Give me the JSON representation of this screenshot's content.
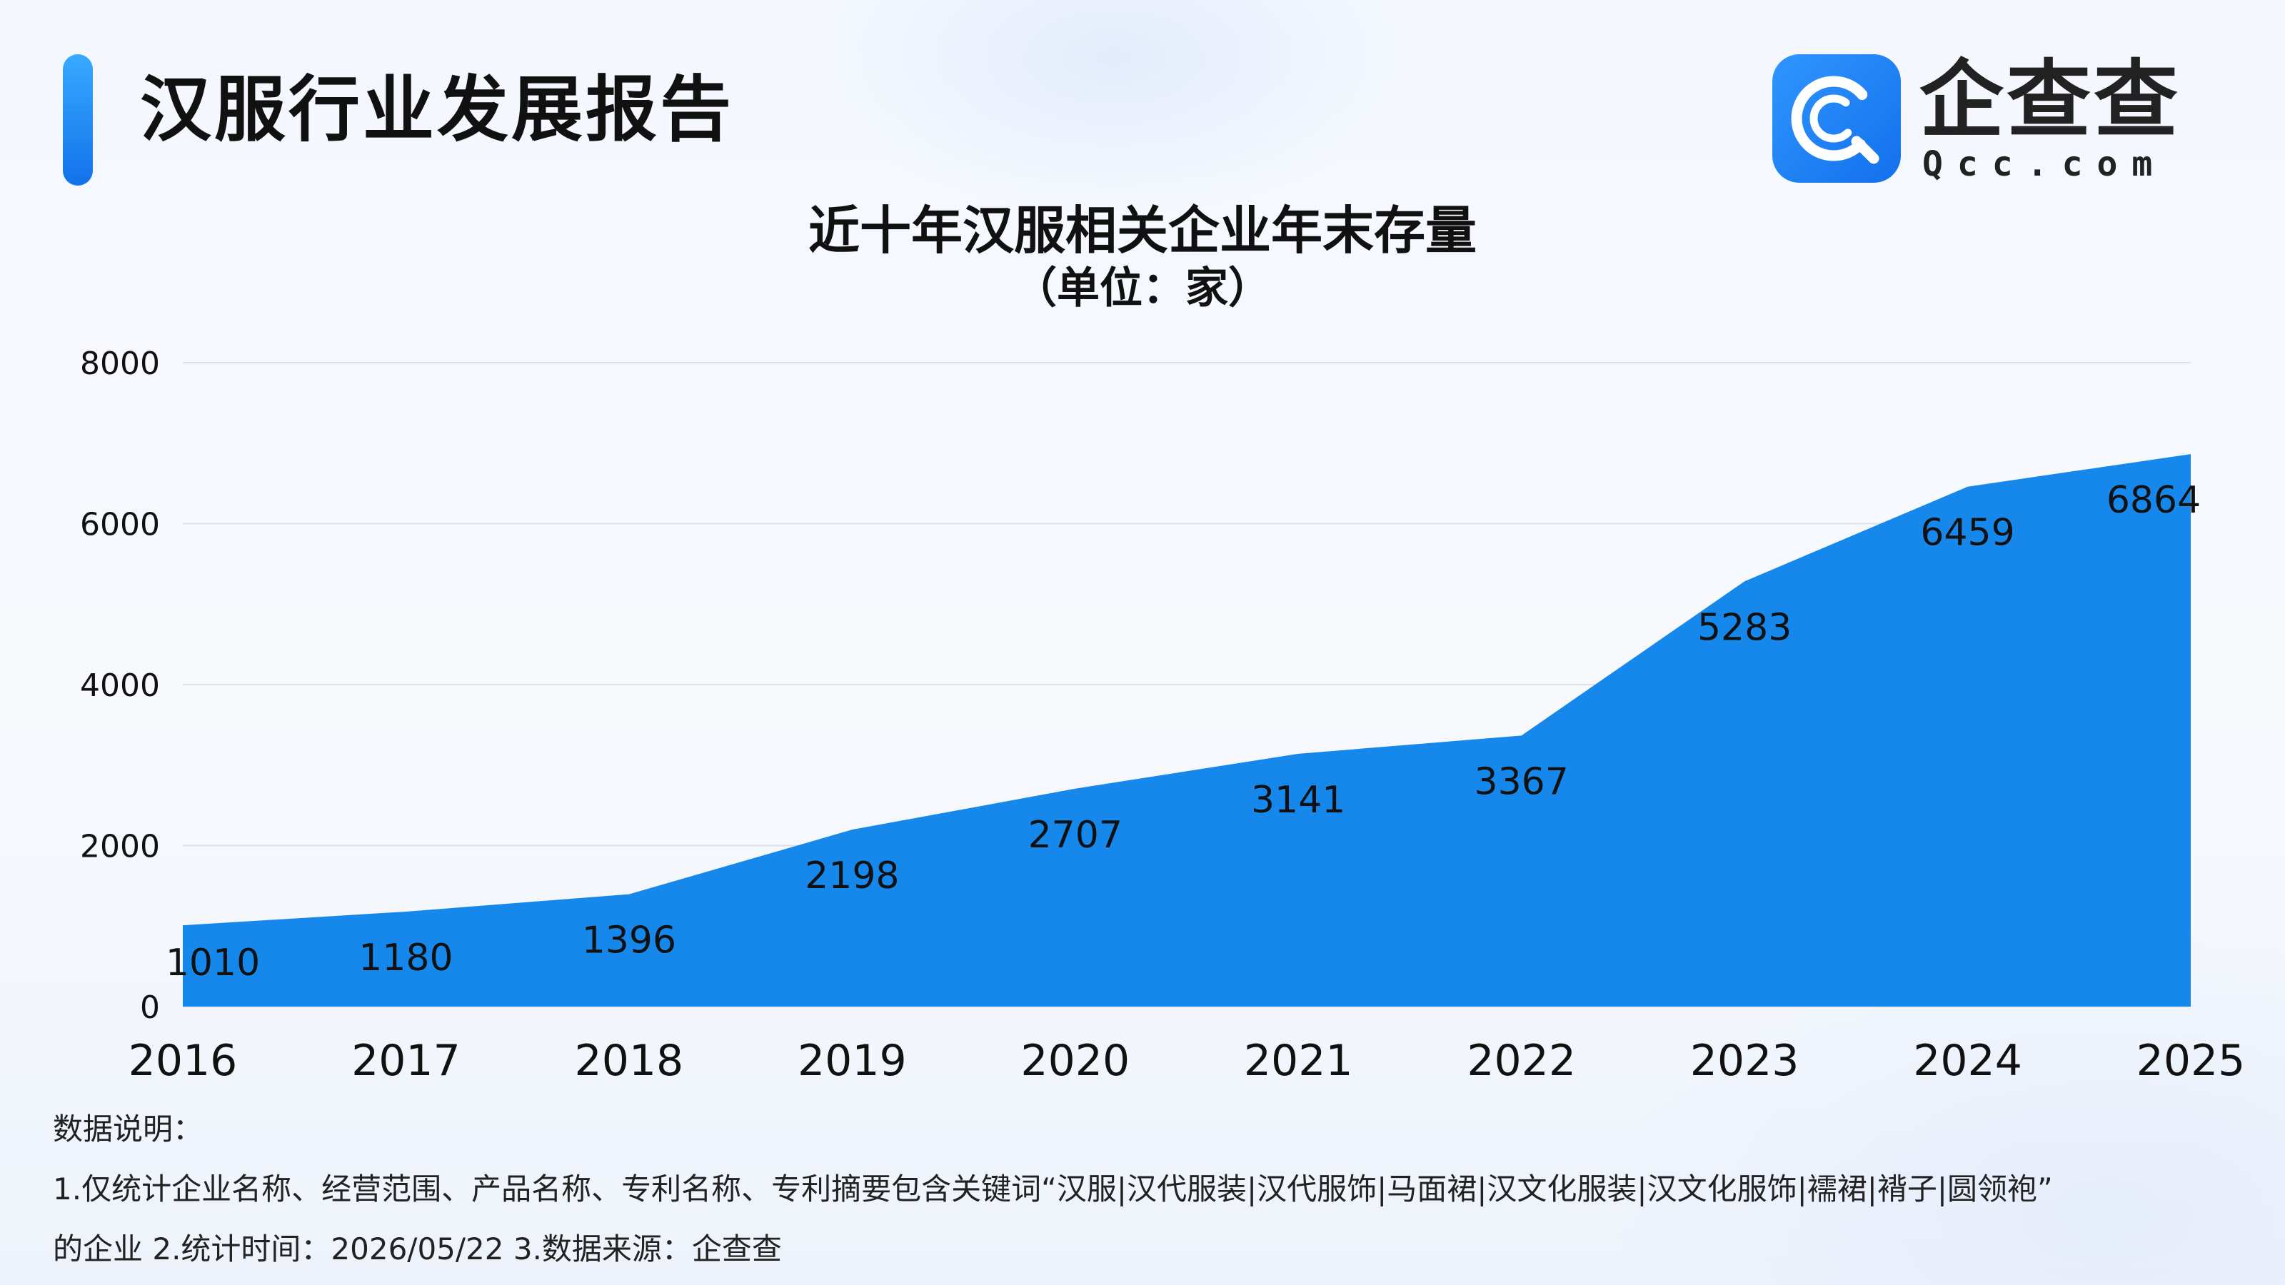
{
  "header": {
    "title": "汉服行业发展报告",
    "logo": {
      "icon": "qcc-logo-icon",
      "name": "企查查",
      "domain": "Qcc.com"
    }
  },
  "colors": {
    "accent": "#1272ea",
    "area": "#1688ec",
    "grid": "#dde2ea",
    "text": "#111111"
  },
  "chart_data": {
    "type": "area",
    "title": "近十年汉服相关企业年末存量",
    "subtitle": "（单位：家）",
    "categories": [
      "2016",
      "2017",
      "2018",
      "2019",
      "2020",
      "2021",
      "2022",
      "2023",
      "2024",
      "2025"
    ],
    "series": [
      {
        "values": [
          1010,
          1180,
          1396,
          2198,
          2707,
          3141,
          3367,
          5283,
          6459,
          6864
        ]
      }
    ],
    "ylim": [
      0,
      8000
    ],
    "yticks": [
      "0",
      "2000",
      "4000",
      "6000",
      "8000"
    ],
    "grid": true,
    "legend": "none",
    "data_labels": [
      "1010",
      "1180",
      "1396",
      "2198",
      "2707",
      "3141",
      "3367",
      "5283",
      "6459",
      "6864"
    ]
  },
  "notes": {
    "heading": "数据说明：",
    "line1": "1.仅统计企业名称、经营范围、产品名称、专利名称、专利摘要包含关键词“汉服|汉代服装|汉代服饰|马面裙|汉文化服装|汉文化服饰|襦裙|褙子|圆领袍”",
    "line2": "的企业   2.统计时间：2026/05/22    3.数据来源：企查查"
  }
}
